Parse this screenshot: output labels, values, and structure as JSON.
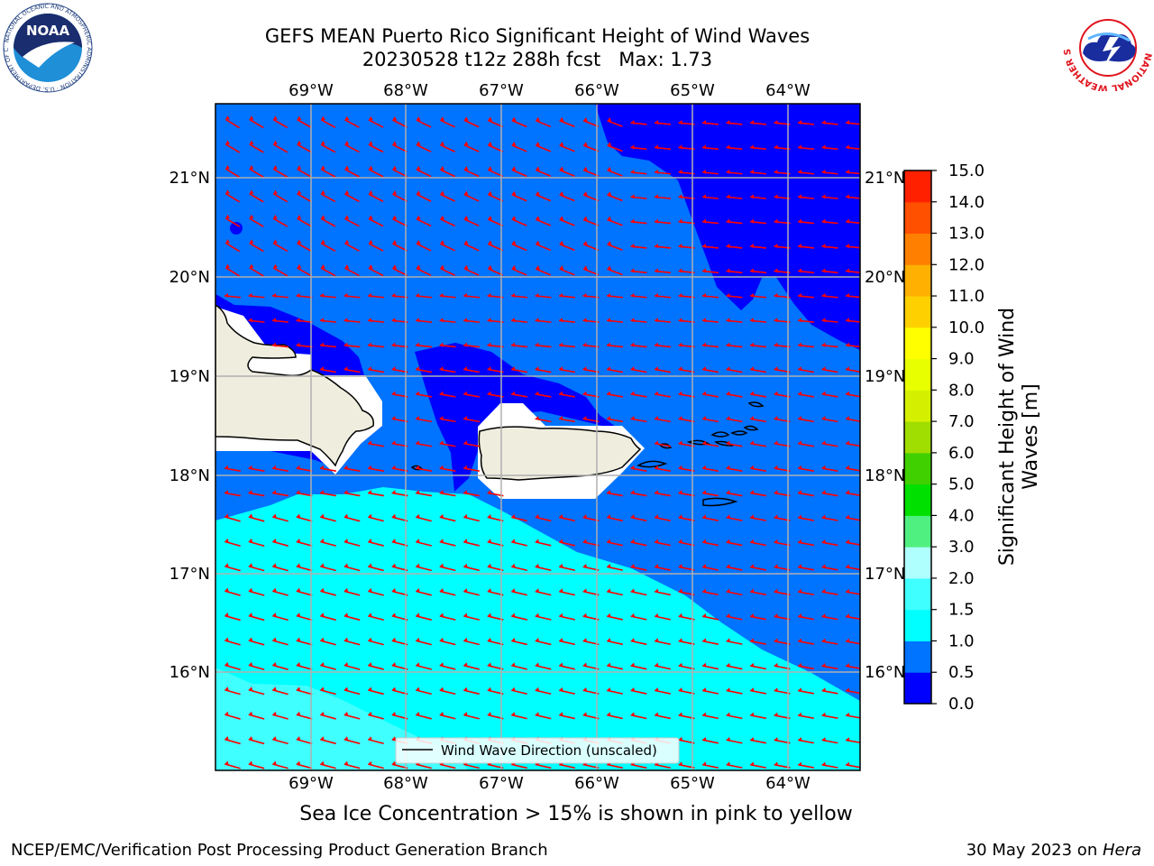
{
  "title": {
    "line1": "GEFS MEAN Puerto Rico Significant Height of Wind Waves",
    "line2": "20230528 t12z 288h fcst   Max: 1.73"
  },
  "map": {
    "lon_labels": [
      "69°W",
      "68°W",
      "67°W",
      "66°W",
      "65°W",
      "64°W"
    ],
    "lat_labels": [
      "21°N",
      "20°N",
      "19°N",
      "18°N",
      "17°N",
      "16°N"
    ],
    "legend_label": "Wind Wave Direction (unscaled)",
    "arrow_color": "#ff0000",
    "land_color": "#efedde"
  },
  "colorbar": {
    "label_line1": "Significant Height of Wind",
    "label_line2": "Waves [m]",
    "ticks": [
      "0.0",
      "0.5",
      "1.0",
      "1.5",
      "2.0",
      "3.0",
      "4.0",
      "5.0",
      "6.0",
      "7.0",
      "8.0",
      "9.0",
      "10.0",
      "11.0",
      "12.0",
      "13.0",
      "14.0",
      "15.0"
    ],
    "colors": [
      "#0000ff",
      "#0073ff",
      "#00ffff",
      "#40ffff",
      "#b0ffff",
      "#50f080",
      "#00e000",
      "#40d000",
      "#a0dd00",
      "#d4f000",
      "#e8ff00",
      "#ffff00",
      "#ffd000",
      "#ffb000",
      "#ff8000",
      "#ff5000",
      "#ff2000"
    ]
  },
  "caption": "Sea Ice Concentration > 15% is shown in pink to yellow",
  "footer": {
    "left": "NCEP/EMC/Verification Post Processing Product Generation Branch",
    "date": "30 May 2023 on ",
    "machine": "Hera"
  },
  "logos": {
    "noaa_text": "NOAA",
    "noaa_ring": "NATIONAL OCEANIC AND ATMOSPHERIC ADMINISTRATION · U.S. DEPARTMENT OF COMMERCE",
    "nws_ring": "NATIONAL WEATHER SERVICE"
  }
}
